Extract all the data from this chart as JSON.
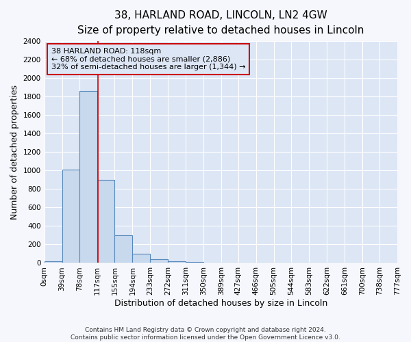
{
  "title": "38, HARLAND ROAD, LINCOLN, LN2 4GW",
  "subtitle": "Size of property relative to detached houses in Lincoln",
  "xlabel": "Distribution of detached houses by size in Lincoln",
  "ylabel": "Number of detached properties",
  "bin_edges": [
    0,
    39,
    78,
    117,
    155,
    194,
    233,
    272,
    311,
    350,
    389,
    427,
    466,
    505,
    544,
    583,
    622,
    661,
    700,
    738,
    777
  ],
  "bin_labels": [
    "0sqm",
    "39sqm",
    "78sqm",
    "117sqm",
    "155sqm",
    "194sqm",
    "233sqm",
    "272sqm",
    "311sqm",
    "350sqm",
    "389sqm",
    "427sqm",
    "466sqm",
    "505sqm",
    "544sqm",
    "583sqm",
    "622sqm",
    "661sqm",
    "700sqm",
    "738sqm",
    "777sqm"
  ],
  "bar_heights": [
    20,
    1010,
    1860,
    900,
    300,
    100,
    40,
    20,
    10,
    0,
    0,
    0,
    0,
    0,
    0,
    0,
    0,
    0,
    0,
    0
  ],
  "bar_color": "#c9d9ed",
  "bar_edge_color": "#5588bb",
  "vline_x": 118,
  "vline_color": "#cc0000",
  "ylim": [
    0,
    2400
  ],
  "yticks": [
    0,
    200,
    400,
    600,
    800,
    1000,
    1200,
    1400,
    1600,
    1800,
    2000,
    2200,
    2400
  ],
  "plot_bg_color": "#dde6f5",
  "fig_bg_color": "#f5f7fc",
  "annotation_box_edge": "#cc0000",
  "annotation_box_bg": "#dde6f5",
  "annotation_lines": [
    "38 HARLAND ROAD: 118sqm",
    "← 68% of detached houses are smaller (2,886)",
    "32% of semi-detached houses are larger (1,344) →"
  ],
  "footer_lines": [
    "Contains HM Land Registry data © Crown copyright and database right 2024.",
    "Contains public sector information licensed under the Open Government Licence v3.0."
  ],
  "grid_color": "#ffffff",
  "title_fontsize": 11,
  "subtitle_fontsize": 9,
  "axis_label_fontsize": 9,
  "tick_fontsize": 7.5,
  "annotation_fontsize": 8,
  "footer_fontsize": 6.5
}
